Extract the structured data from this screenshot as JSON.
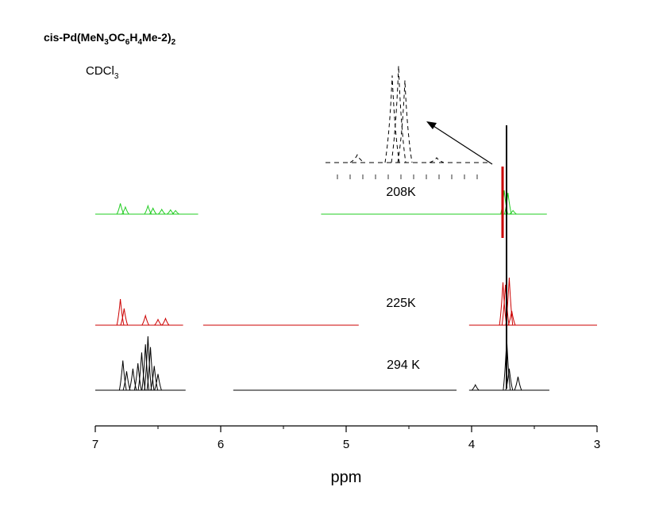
{
  "chart_data": {
    "type": "line",
    "compound": {
      "a": "cis-Pd(MeN",
      "s1": "3",
      "b": "OC",
      "s2": "6",
      "c": "H",
      "s3": "4",
      "d": "Me-2)",
      "s4": "2"
    },
    "solvent": {
      "main": "CDCl",
      "sub": "3"
    },
    "xlabel": "ppm",
    "xlim": [
      7,
      3
    ],
    "xticks": [
      "7",
      "6",
      "5",
      "4",
      "3"
    ],
    "x_reversed": true,
    "series": [
      {
        "name": "294 K",
        "color": "#000000",
        "baseline_segments": [
          [
            7.0,
            6.28
          ],
          [
            5.9,
            4.12
          ],
          [
            4.02,
            3.38
          ]
        ],
        "peaks": [
          [
            6.78,
            0.55
          ],
          [
            6.75,
            0.35
          ],
          [
            6.7,
            0.4
          ],
          [
            6.66,
            0.5
          ],
          [
            6.63,
            0.7
          ],
          [
            6.6,
            0.85
          ],
          [
            6.58,
            1.0
          ],
          [
            6.56,
            0.8
          ],
          [
            6.53,
            0.45
          ],
          [
            6.5,
            0.3
          ],
          [
            3.97,
            0.1
          ],
          [
            3.72,
            0.95
          ],
          [
            3.7,
            0.4
          ],
          [
            3.63,
            0.25
          ]
        ]
      },
      {
        "name": "225K",
        "color": "#cc0000",
        "baseline_segments": [
          [
            7.0,
            6.3
          ],
          [
            6.14,
            4.9
          ],
          [
            4.02,
            3.0
          ]
        ],
        "peaks": [
          [
            6.8,
            0.55
          ],
          [
            6.77,
            0.35
          ],
          [
            6.6,
            0.2
          ],
          [
            6.5,
            0.12
          ],
          [
            6.44,
            0.14
          ],
          [
            3.75,
            0.9
          ],
          [
            3.73,
            0.85
          ],
          [
            3.7,
            1.0
          ],
          [
            3.68,
            0.3
          ]
        ]
      },
      {
        "name": "208K",
        "color": "#22cc22",
        "baseline_segments": [
          [
            7.0,
            6.18
          ],
          [
            5.2,
            3.4
          ]
        ],
        "peaks": [
          [
            6.8,
            0.45
          ],
          [
            6.76,
            0.3
          ],
          [
            6.58,
            0.35
          ],
          [
            6.54,
            0.25
          ],
          [
            6.47,
            0.2
          ],
          [
            6.4,
            0.18
          ],
          [
            6.36,
            0.15
          ],
          [
            3.74,
            1.0
          ],
          [
            3.71,
            0.9
          ],
          [
            3.67,
            0.15
          ]
        ]
      }
    ],
    "inset": {
      "color": "#000000",
      "peaks": [
        [
          4.54,
          0.9
        ],
        [
          4.52,
          1.0
        ],
        [
          4.5,
          0.85
        ],
        [
          4.65,
          0.08
        ],
        [
          4.4,
          0.05
        ]
      ]
    }
  }
}
